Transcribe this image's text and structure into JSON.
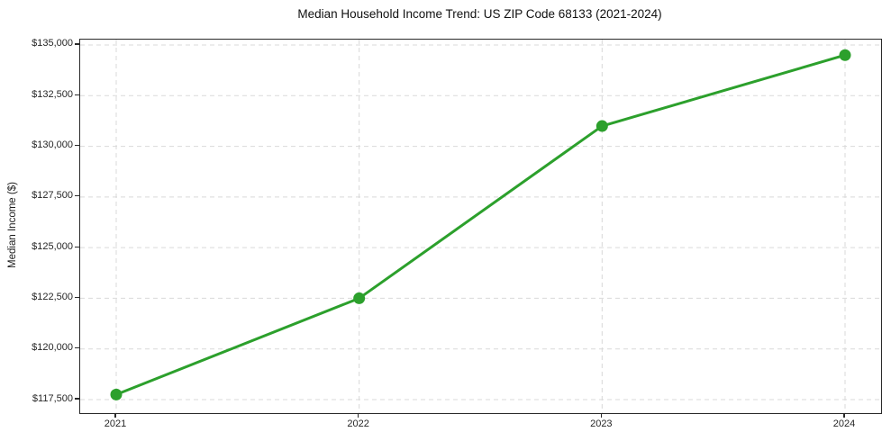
{
  "figure": {
    "background": "#ffffff",
    "frame_color": "#2a2a2a",
    "tick_label_color": "#262626"
  },
  "chart_data": {
    "type": "line",
    "title": "Median Household Income Trend: US ZIP Code 68133 (2021-2024)",
    "xlabel": "",
    "ylabel": "Median Income ($)",
    "x": [
      "2021",
      "2022",
      "2023",
      "2024"
    ],
    "series": [
      {
        "name": "Median Household Income",
        "color": "#2ca02c",
        "values": [
          117750,
          122500,
          131000,
          134500
        ],
        "line_width": 3,
        "marker": "circle",
        "marker_size": 13
      }
    ],
    "y_ticks": [
      117500,
      120000,
      122500,
      125000,
      127500,
      130000,
      132500,
      135000
    ],
    "y_tick_labels": [
      "$117,500",
      "$120,000",
      "$122,500",
      "$125,000",
      "$127,500",
      "$130,000",
      "$132,500",
      "$135,000"
    ],
    "ylim": [
      116834,
      135266
    ],
    "grid": true,
    "grid_style": "dashed",
    "grid_color": "#d9d9d9",
    "legend": false
  }
}
